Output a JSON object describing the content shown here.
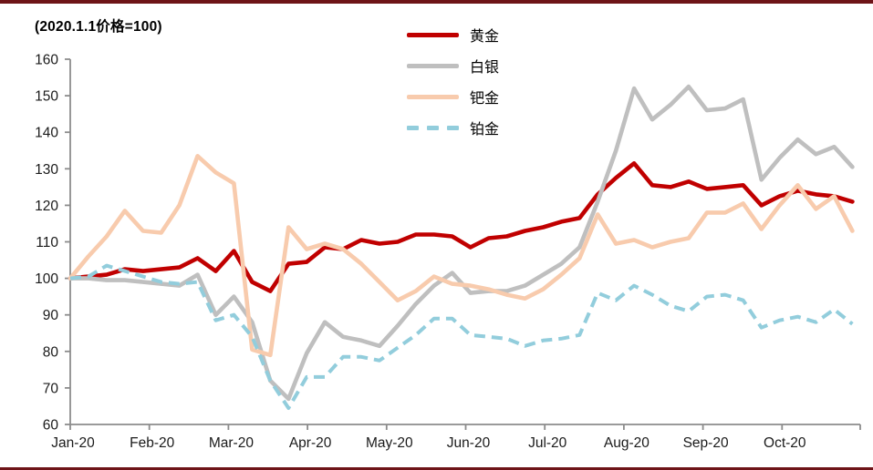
{
  "page": {
    "background": "#FFFFFF",
    "top_border_color": "#6E1418",
    "bottom_border_color": "#6E1418"
  },
  "chart_data": {
    "type": "line",
    "title": "(2020.1.1价格=100)",
    "x_tick_labels": [
      "Jan-20",
      "Feb-20",
      "Mar-20",
      "Apr-20",
      "May-20",
      "Jun-20",
      "Jul-20",
      "Aug-20",
      "Sep-20",
      "Oct-20"
    ],
    "x_unit": "weekly samples, Jan 2020 - late Oct 2020",
    "y_ticks": [
      60,
      70,
      80,
      90,
      100,
      110,
      120,
      130,
      140,
      150,
      160
    ],
    "ylim": [
      60,
      160
    ],
    "grid": false,
    "legend_position": "top-center",
    "axis_color": "#8C8C8C",
    "tick_label_color": "#1A1A1A",
    "series": [
      {
        "key": "gold",
        "name": "黄金",
        "color": "#C00000",
        "style": "solid",
        "values": [
          100,
          100.5,
          101,
          102.5,
          102,
          102.5,
          103,
          105.5,
          102,
          107.5,
          99,
          96.5,
          104,
          104.5,
          108.5,
          108,
          110.5,
          109.5,
          110,
          112,
          112,
          111.5,
          108.5,
          111,
          111.5,
          113,
          114,
          115.5,
          116.5,
          123,
          127.5,
          131.5,
          125.5,
          125,
          126.5,
          124.5,
          125,
          125.5,
          120,
          122.5,
          124,
          123,
          122.5,
          121
        ]
      },
      {
        "key": "silver",
        "name": "白银",
        "color": "#BFBFBF",
        "style": "solid",
        "values": [
          100,
          100,
          99.5,
          99.5,
          99,
          98.5,
          98,
          101,
          90,
          95,
          88,
          72,
          67,
          79.5,
          88,
          84,
          83,
          81.5,
          87,
          93,
          98,
          101.5,
          96,
          96.5,
          96.5,
          98,
          101,
          104,
          108.5,
          121,
          135,
          152,
          143.5,
          147.5,
          152.5,
          146,
          146.5,
          149,
          127,
          133,
          138,
          134,
          136,
          130.5
        ]
      },
      {
        "key": "palladium",
        "name": "钯金",
        "color": "#F8CBAD",
        "style": "solid",
        "values": [
          100,
          106,
          111.5,
          118.5,
          113,
          112.5,
          120,
          133.5,
          129,
          126,
          80.5,
          79,
          114,
          108,
          109.5,
          108,
          104,
          99,
          94,
          96.5,
          100.5,
          98.5,
          98,
          97,
          95.5,
          94.5,
          97,
          101,
          105.5,
          117.5,
          109.5,
          110.5,
          108.5,
          110,
          111,
          118,
          118,
          120.5,
          113.5,
          120,
          125.5,
          119,
          122.5,
          113
        ]
      },
      {
        "key": "platinum",
        "name": "铂金",
        "color": "#92CDDC",
        "style": "dashed",
        "values": [
          100,
          100.5,
          103.5,
          102,
          100.5,
          99,
          98.5,
          99,
          88.5,
          90,
          84,
          72,
          64.5,
          73,
          73,
          78.5,
          78.5,
          77.5,
          81,
          84.5,
          89,
          89,
          84.5,
          84,
          83.5,
          81.5,
          83,
          83.5,
          84.5,
          96,
          94,
          98,
          95.5,
          92.5,
          91,
          95,
          95.5,
          94,
          86.5,
          88.5,
          89.5,
          88,
          91.5,
          87.5
        ]
      }
    ]
  }
}
